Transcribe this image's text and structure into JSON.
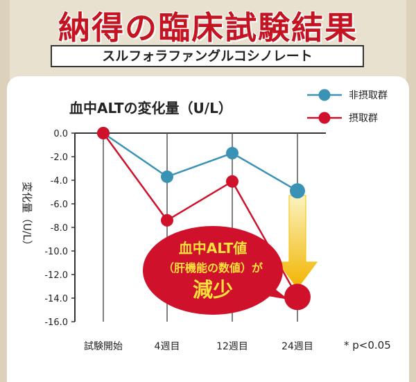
{
  "header": {
    "title": "納得の臨床試験結果",
    "subtitle": "スルフォラファングルコシノレート"
  },
  "chart_data": {
    "type": "line",
    "title": "血中ALTの変化量（U/L）",
    "ylabel": "変化量（U/L）",
    "xlabel": "",
    "categories": [
      "試験開始",
      "4週目",
      "12週目",
      "24週目"
    ],
    "ylim": [
      -16.0,
      0.0
    ],
    "yticks": [
      "0.0",
      "-2.0",
      "-4.0",
      "-6.0",
      "-8.0",
      "-10.0",
      "-12.0",
      "-14.0",
      "-16.0"
    ],
    "series": [
      {
        "name": "非摂取群",
        "color": "#3a93b5",
        "values": [
          0.0,
          -3.7,
          -1.7,
          -4.9
        ]
      },
      {
        "name": "摂取群",
        "color": "#d0112b",
        "values": [
          0.0,
          -7.4,
          -4.1,
          -13.9
        ]
      }
    ],
    "legend_position": "top-right",
    "grid": "vertical",
    "annotation": {
      "line1": "血中ALT値",
      "line2": "（肝機能の数値）が",
      "line3": "減少"
    },
    "footnote": "* p<0.05"
  }
}
